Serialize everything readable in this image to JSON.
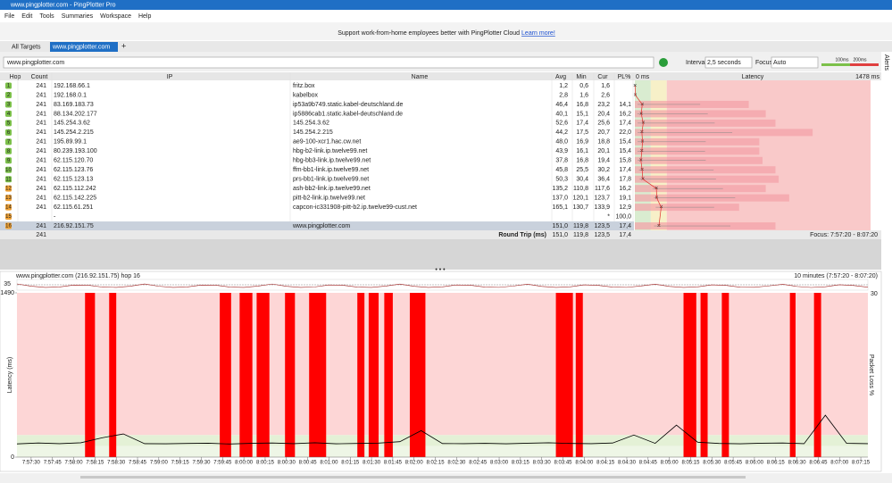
{
  "window": {
    "title": "www.pingplotter.com - PingPlotter Pro"
  },
  "menu": [
    "File",
    "Edit",
    "Tools",
    "Summaries",
    "Workspace",
    "Help"
  ],
  "banner": {
    "text": "Support work-from-home employees better with PingPlotter Cloud",
    "link": "Learn more!"
  },
  "tabs": [
    "All Targets",
    "www.pingplotter.com"
  ],
  "toolbar": {
    "target": "www.pingplotter.com",
    "interval_label": "Interval",
    "interval": "2,5 seconds",
    "focus_label": "Focus",
    "focus": "Auto",
    "scale": [
      "100ms",
      "200ms"
    ],
    "alerts": "Alerts"
  },
  "table": {
    "columns": [
      "Hop",
      "Count",
      "IP",
      "Name",
      "Avg",
      "Min",
      "Cur",
      "PL%"
    ],
    "graph": {
      "min_label": "0 ms",
      "title": "Latency",
      "max_label": "1478 ms",
      "xlim": [
        0,
        1478
      ],
      "zones": [
        100,
        200
      ]
    },
    "rows": [
      [
        "1",
        "241",
        "192.168.66.1",
        "fritz.box",
        "1,2",
        "0,6",
        "1,6",
        ""
      ],
      [
        "2",
        "241",
        "192.168.0.1",
        "kabelbox",
        "2,8",
        "1,6",
        "2,6",
        ""
      ],
      [
        "3",
        "241",
        "83.169.183.73",
        "ip53a9b749.static.kabel-deutschland.de",
        "46,4",
        "16,8",
        "23,2",
        "14,1"
      ],
      [
        "4",
        "241",
        "88.134.202.177",
        "ip5886cab1.static.kabel-deutschland.de",
        "40,1",
        "15,1",
        "20,4",
        "16,2"
      ],
      [
        "5",
        "241",
        "145.254.3.62",
        "145.254.3.62",
        "52,6",
        "17,4",
        "25,6",
        "17,4"
      ],
      [
        "6",
        "241",
        "145.254.2.215",
        "145.254.2.215",
        "44,2",
        "17,5",
        "20,7",
        "22,0"
      ],
      [
        "7",
        "241",
        "195.89.99.1",
        "ae9-100-xcr1.hac.cw.net",
        "48,0",
        "16,9",
        "18,8",
        "15,4"
      ],
      [
        "8",
        "241",
        "80.239.193.100",
        "hbg-b2-link.ip.twelve99.net",
        "43,9",
        "16,1",
        "20,1",
        "15,4"
      ],
      [
        "9",
        "241",
        "62.115.120.70",
        "hbg-bb3-link.ip.twelve99.net",
        "37,8",
        "16,8",
        "19,4",
        "15,8"
      ],
      [
        "10",
        "241",
        "62.115.123.76",
        "ffm-bb1-link.ip.twelve99.net",
        "45,8",
        "25,5",
        "30,2",
        "17,4"
      ],
      [
        "11",
        "241",
        "62.115.123.13",
        "prs-bb1-link.ip.twelve99.net",
        "50,3",
        "30,4",
        "36,4",
        "17,8"
      ],
      [
        "12",
        "241",
        "62.115.112.242",
        "ash-bb2-link.ip.twelve99.net",
        "135,2",
        "110,8",
        "117,6",
        "16,2"
      ],
      [
        "13",
        "241",
        "62.115.142.225",
        "pitt-b2-link.ip.twelve99.net",
        "137,0",
        "120,1",
        "123,7",
        "19,1"
      ],
      [
        "14",
        "241",
        "62.115.61.251",
        "capcon-ic331908-pitt-b2.ip.twelve99-cust.net",
        "165,1",
        "130,7",
        "133,9",
        "12,9"
      ],
      [
        "15",
        "",
        "-",
        "",
        "",
        "",
        "*",
        "100,0"
      ],
      [
        "16",
        "241",
        "216.92.151.75",
        "www.pingplotter.com",
        "151,0",
        "119,8",
        "123,5",
        "17,4"
      ]
    ],
    "row_colors": [
      "#7cc04a",
      "#7cc04a",
      "#7cc04a",
      "#7cc04a",
      "#7cc04a",
      "#7cc04a",
      "#7cc04a",
      "#7cc04a",
      "#7cc04a",
      "#7cc04a",
      "#7cc04a",
      "#f0a236",
      "#f0a236",
      "#f0a236",
      "#f0a236",
      "#f0a236"
    ],
    "summary": {
      "count": "241",
      "label": "Round Trip (ms)",
      "avg": "151,0",
      "min": "119,8",
      "cur": "123,5",
      "pl": "17,4",
      "focus": "Focus: 7:57:20 - 8:07:20"
    }
  },
  "chart_data": {
    "type": "line",
    "title": "www.pingplotter.com (216.92.151.75) hop 16",
    "subtitle": "10 minutes (7:57:20 - 8:07:20)",
    "ylabel": "Latency (ms)",
    "y2label": "Packet Loss %",
    "overview_labels": [
      "35",
      "30"
    ],
    "ylim": [
      0,
      1490
    ],
    "yticks": [
      0,
      1490
    ],
    "xlim": [
      "7:57:20",
      "8:07:20"
    ],
    "zones": [
      100,
      200
    ],
    "xticks": [
      "7:57:30",
      "7:57:45",
      "7:58:00",
      "7:58:15",
      "7:58:30",
      "7:58:45",
      "7:59:00",
      "7:59:15",
      "7:59:30",
      "7:59:45",
      "8:00:00",
      "8:00:15",
      "8:00:30",
      "8:00:45",
      "8:01:00",
      "8:01:15",
      "8:01:30",
      "8:01:45",
      "8:02:00",
      "8:02:15",
      "8:02:30",
      "8:02:45",
      "8:03:00",
      "8:03:15",
      "8:03:30",
      "8:03:45",
      "8:04:00",
      "8:04:15",
      "8:04:30",
      "8:04:45",
      "8:05:00",
      "8:05:15",
      "8:05:30",
      "8:05:45",
      "8:06:00",
      "8:06:15",
      "8:06:30",
      "8:06:45",
      "8:07:00",
      "8:07:15"
    ],
    "x": [
      "7:57:20",
      "7:57:35",
      "7:57:50",
      "7:58:05",
      "7:58:20",
      "7:58:35",
      "7:58:50",
      "7:59:05",
      "7:59:20",
      "7:59:35",
      "7:59:50",
      "8:00:05",
      "8:00:20",
      "8:00:35",
      "8:00:50",
      "8:01:05",
      "8:01:20",
      "8:01:35",
      "8:01:50",
      "8:02:05",
      "8:02:20",
      "8:02:35",
      "8:02:50",
      "8:03:05",
      "8:03:20",
      "8:03:35",
      "8:03:50",
      "8:04:05",
      "8:04:20",
      "8:04:35",
      "8:04:50",
      "8:05:05",
      "8:05:20",
      "8:05:35",
      "8:05:50",
      "8:06:05",
      "8:06:20",
      "8:06:35",
      "8:06:50",
      "8:07:05",
      "8:07:20"
    ],
    "series": [
      {
        "color": "#000000",
        "values": [
          120,
          128,
          122,
          130,
          175,
          210,
          122,
          121,
          124,
          126,
          119,
          125,
          128,
          122,
          130,
          121,
          124,
          127,
          140,
          240,
          123,
          122,
          125,
          121,
          126,
          130,
          124,
          122,
          128,
          200,
          125,
          290,
          135,
          124,
          121,
          126,
          128,
          122,
          380,
          125,
          122
        ]
      }
    ],
    "loss_color": "#ff0000",
    "loss_periods": [
      [
        "7:58:08",
        "7:58:15"
      ],
      [
        "7:58:25",
        "7:58:30"
      ],
      [
        "7:59:43",
        "7:59:51"
      ],
      [
        "7:59:57",
        "8:00:06"
      ],
      [
        "8:00:09",
        "8:00:18"
      ],
      [
        "8:00:29",
        "8:00:36"
      ],
      [
        "8:00:46",
        "8:00:58"
      ],
      [
        "8:01:20",
        "8:01:25"
      ],
      [
        "8:01:28",
        "8:01:35"
      ],
      [
        "8:01:39",
        "8:01:45"
      ],
      [
        "8:01:57",
        "8:02:08"
      ],
      [
        "8:03:40",
        "8:03:52"
      ],
      [
        "8:03:54",
        "8:03:59"
      ],
      [
        "8:05:10",
        "8:05:19"
      ],
      [
        "8:05:22",
        "8:05:27"
      ],
      [
        "8:05:37",
        "8:05:42"
      ],
      [
        "8:06:25",
        "8:06:29"
      ],
      [
        "8:06:42",
        "8:06:47"
      ]
    ]
  }
}
